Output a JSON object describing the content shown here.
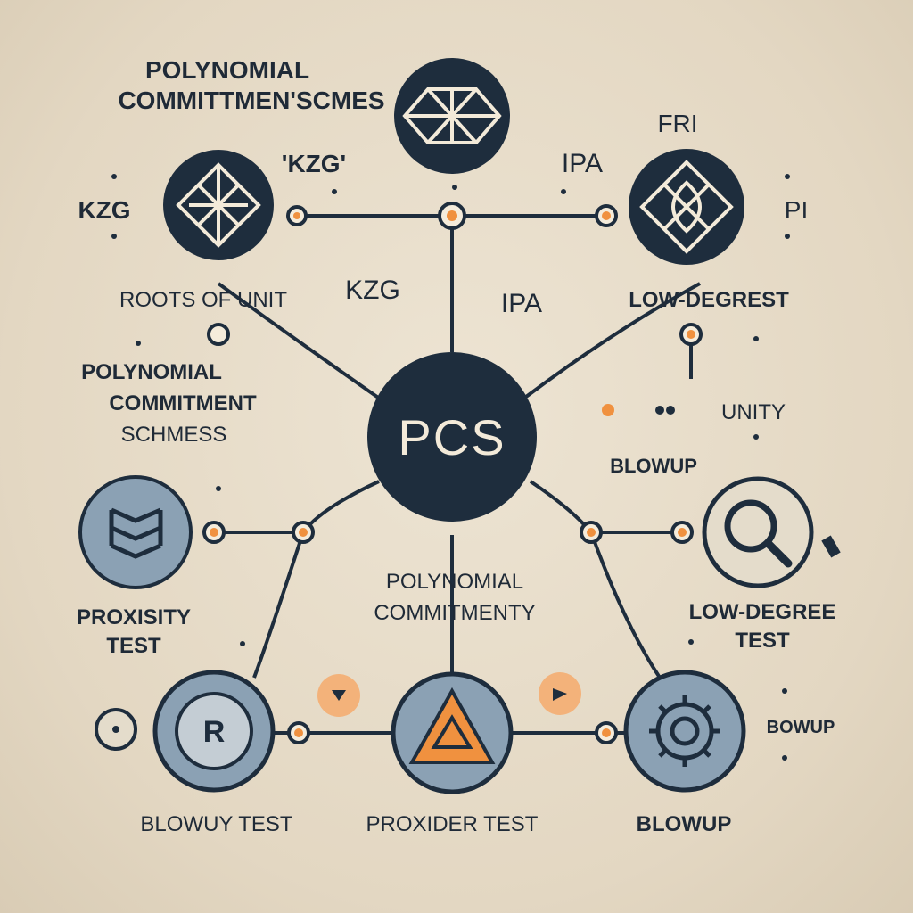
{
  "center": {
    "label": "PCS"
  },
  "labels": {
    "top_title_line1": "POLYNOMIAL",
    "top_title_line2": "COMMITTMEN'SCMES",
    "kzg_quoted": "'KZG'",
    "kzg_left": "KZG",
    "ipa_top": "IPA",
    "fri": "FRI",
    "pi": "PI",
    "roots_of_unity": "ROOTS OF UNIT",
    "kzg_mid": "KZG",
    "ipa_mid": "IPA",
    "low_degree_top": "LOW-DEGREST",
    "pcs_left_line1": "POLYNOMIAL",
    "pcs_left_line2": "COMMITMENT",
    "pcs_left_line3": "SCHMESS",
    "unity": "UNITY",
    "blowup_right": "BLOWUP",
    "poly_commit_line1": "POLYNOMIAL",
    "poly_commit_line2": "COMMITMENTY",
    "proximity_line1": "PROXISITY",
    "proximity_line2": "TEST",
    "low_degree_line1": "LOW-DEGREE",
    "low_degree_line2": "TEST",
    "blowup_bottom_right_side": "BOWUP",
    "blowup_test": "BLOWUY TEST",
    "provider_test": "PROXIDER TEST",
    "blowup_bottom": "BLOWUP"
  },
  "colors": {
    "dark_navy": "#1e2d3d",
    "orange": "#f0913f",
    "slate": "#8ba1b4",
    "cream": "#f3ead9"
  },
  "icons": [
    "triangle-lattice-icon",
    "diamond-knot-icon",
    "star-diamond-icon",
    "chevron-stack-icon",
    "magnifier-icon",
    "r-badge-icon",
    "warning-triangle-icon",
    "gear-icon"
  ]
}
